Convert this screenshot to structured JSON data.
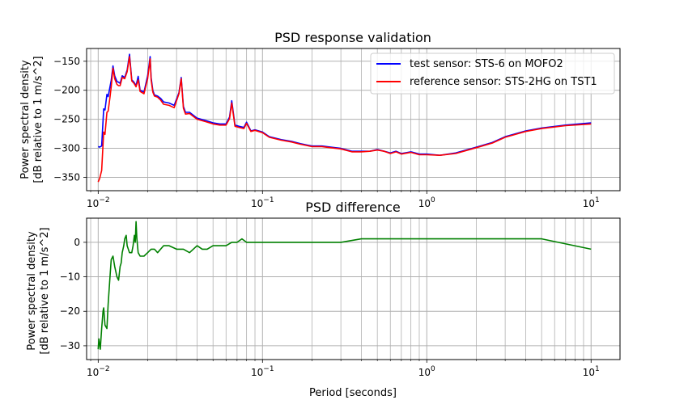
{
  "figure": {
    "background": "#ffffff"
  },
  "chart_data": [
    {
      "type": "line",
      "title": "PSD response validation",
      "xlabel": "",
      "ylabel": [
        "Power spectral density",
        "[dB relative to 1 m/s^2]"
      ],
      "xscale": "log",
      "xlim": [
        0.0085,
        15
      ],
      "ylim": [
        -373,
        -128
      ],
      "xticks": [
        0.01,
        0.1,
        1,
        10
      ],
      "xtick_labels": [
        {
          "base": "10",
          "exp": "−2"
        },
        {
          "base": "10",
          "exp": "−1"
        },
        {
          "base": "10",
          "exp": "0"
        },
        {
          "base": "10",
          "exp": "1"
        }
      ],
      "yticks": [
        -150,
        -200,
        -250,
        -300,
        -350
      ],
      "ytick_labels": [
        "−150",
        "−200",
        "−250",
        "−300",
        "−350"
      ],
      "grid": true,
      "legend_position": "top-right",
      "series": [
        {
          "name": "test sensor: STS-6 on MOFO2",
          "color": "#0000ff",
          "x": [
            0.01,
            0.0102,
            0.0105,
            0.0108,
            0.011,
            0.0113,
            0.0115,
            0.0118,
            0.012,
            0.0123,
            0.0126,
            0.013,
            0.0133,
            0.0136,
            0.014,
            0.0145,
            0.015,
            0.0155,
            0.016,
            0.0165,
            0.017,
            0.0175,
            0.018,
            0.019,
            0.02,
            0.0207,
            0.021,
            0.0215,
            0.022,
            0.023,
            0.024,
            0.025,
            0.027,
            0.029,
            0.031,
            0.032,
            0.033,
            0.034,
            0.036,
            0.04,
            0.045,
            0.05,
            0.055,
            0.06,
            0.063,
            0.065,
            0.068,
            0.072,
            0.077,
            0.08,
            0.085,
            0.09,
            0.1,
            0.11,
            0.13,
            0.15,
            0.17,
            0.2,
            0.23,
            0.26,
            0.3,
            0.35,
            0.4,
            0.45,
            0.5,
            0.55,
            0.6,
            0.65,
            0.7,
            0.8,
            0.9,
            1.0,
            1.2,
            1.5,
            2.0,
            2.5,
            3.0,
            4.0,
            5.0,
            7.0,
            10.0
          ],
          "y": [
            -297,
            -298,
            -296,
            -232,
            -234,
            -207,
            -211,
            -194,
            -183,
            -158,
            -175,
            -185,
            -186,
            -188,
            -175,
            -178,
            -165,
            -138,
            -182,
            -186,
            -192,
            -176,
            -200,
            -203,
            -175,
            -142,
            -178,
            -200,
            -208,
            -210,
            -214,
            -220,
            -222,
            -226,
            -204,
            -178,
            -228,
            -238,
            -238,
            -248,
            -252,
            -256,
            -258,
            -258,
            -246,
            -218,
            -260,
            -262,
            -264,
            -255,
            -270,
            -268,
            -272,
            -280,
            -285,
            -288,
            -292,
            -296,
            -296,
            -298,
            -300,
            -305,
            -305,
            -305,
            -302,
            -305,
            -308,
            -305,
            -309,
            -306,
            -310,
            -310,
            -312,
            -308,
            -298,
            -290,
            -280,
            -270,
            -265,
            -260,
            -256
          ]
        },
        {
          "name": "reference sensor: STS-2HG on TST1",
          "color": "#ff0000",
          "x": [
            0.01,
            0.0102,
            0.0105,
            0.0108,
            0.011,
            0.0113,
            0.0115,
            0.0118,
            0.012,
            0.0123,
            0.0126,
            0.013,
            0.0133,
            0.0136,
            0.014,
            0.0145,
            0.015,
            0.0155,
            0.016,
            0.0165,
            0.017,
            0.0175,
            0.018,
            0.019,
            0.02,
            0.0207,
            0.021,
            0.0215,
            0.022,
            0.023,
            0.024,
            0.025,
            0.027,
            0.029,
            0.031,
            0.032,
            0.033,
            0.034,
            0.036,
            0.04,
            0.045,
            0.05,
            0.055,
            0.06,
            0.063,
            0.065,
            0.068,
            0.072,
            0.077,
            0.08,
            0.085,
            0.09,
            0.1,
            0.11,
            0.13,
            0.15,
            0.17,
            0.2,
            0.23,
            0.26,
            0.3,
            0.35,
            0.4,
            0.45,
            0.5,
            0.55,
            0.6,
            0.65,
            0.7,
            0.8,
            0.9,
            1.0,
            1.2,
            1.5,
            2.0,
            2.5,
            3.0,
            4.0,
            5.0,
            7.0,
            10.0
          ],
          "y": [
            -358,
            -352,
            -338,
            -272,
            -276,
            -238,
            -236,
            -212,
            -194,
            -162,
            -180,
            -190,
            -192,
            -192,
            -178,
            -180,
            -168,
            -142,
            -184,
            -188,
            -194,
            -182,
            -202,
            -206,
            -180,
            -146,
            -182,
            -203,
            -210,
            -212,
            -217,
            -224,
            -226,
            -230,
            -206,
            -180,
            -231,
            -241,
            -240,
            -250,
            -254,
            -258,
            -260,
            -260,
            -249,
            -222,
            -262,
            -264,
            -266,
            -257,
            -271,
            -269,
            -273,
            -281,
            -286,
            -289,
            -293,
            -297,
            -297,
            -299,
            -301,
            -306,
            -306,
            -305,
            -303,
            -305,
            -309,
            -306,
            -310,
            -307,
            -311,
            -311,
            -312,
            -309,
            -299,
            -291,
            -281,
            -271,
            -266,
            -261,
            -258
          ]
        }
      ]
    },
    {
      "type": "line",
      "title": "PSD difference",
      "xlabel": "Period [seconds]",
      "ylabel": [
        "Power spectral density",
        "[dB relative to 1 m/s^2]"
      ],
      "xscale": "log",
      "xlim": [
        0.0085,
        15
      ],
      "ylim": [
        -34,
        7
      ],
      "xticks": [
        0.01,
        0.1,
        1,
        10
      ],
      "xtick_labels": [
        {
          "base": "10",
          "exp": "−2"
        },
        {
          "base": "10",
          "exp": "−1"
        },
        {
          "base": "10",
          "exp": "0"
        },
        {
          "base": "10",
          "exp": "1"
        }
      ],
      "yticks": [
        0,
        -10,
        -20,
        -30
      ],
      "ytick_labels": [
        "0",
        "−10",
        "−20",
        "−30"
      ],
      "grid": true,
      "series": [
        {
          "color": "#008000",
          "x": [
            0.01,
            0.0101,
            0.0103,
            0.0105,
            0.0107,
            0.0108,
            0.011,
            0.0113,
            0.0115,
            0.0118,
            0.012,
            0.0123,
            0.0126,
            0.013,
            0.0133,
            0.0136,
            0.0138,
            0.014,
            0.0143,
            0.0145,
            0.0148,
            0.015,
            0.0155,
            0.016,
            0.0163,
            0.0166,
            0.0168,
            0.017,
            0.0172,
            0.0175,
            0.018,
            0.019,
            0.02,
            0.021,
            0.022,
            0.023,
            0.025,
            0.027,
            0.03,
            0.033,
            0.036,
            0.04,
            0.043,
            0.046,
            0.05,
            0.055,
            0.06,
            0.065,
            0.07,
            0.075,
            0.08,
            0.09,
            0.1,
            0.15,
            0.2,
            0.3,
            0.4,
            0.5,
            0.7,
            1.0,
            1.5,
            2.0,
            3.0,
            5.0,
            10.0
          ],
          "y": [
            -31,
            -28,
            -31,
            -25,
            -20,
            -19,
            -24,
            -25,
            -18,
            -10,
            -5,
            -4,
            -7,
            -10,
            -11,
            -7,
            -6,
            -3,
            -1,
            1,
            2,
            -1,
            -3,
            -3,
            -1,
            2,
            0,
            6,
            1,
            -3,
            -4,
            -4,
            -3,
            -2,
            -2,
            -3,
            -1,
            -1,
            -2,
            -2,
            -3,
            -1,
            -2,
            -2,
            -1,
            -1,
            -1,
            0,
            0,
            1,
            0,
            0,
            0,
            0,
            0,
            0,
            1,
            1,
            1,
            1,
            1,
            1,
            1,
            1,
            -2
          ]
        }
      ]
    }
  ]
}
